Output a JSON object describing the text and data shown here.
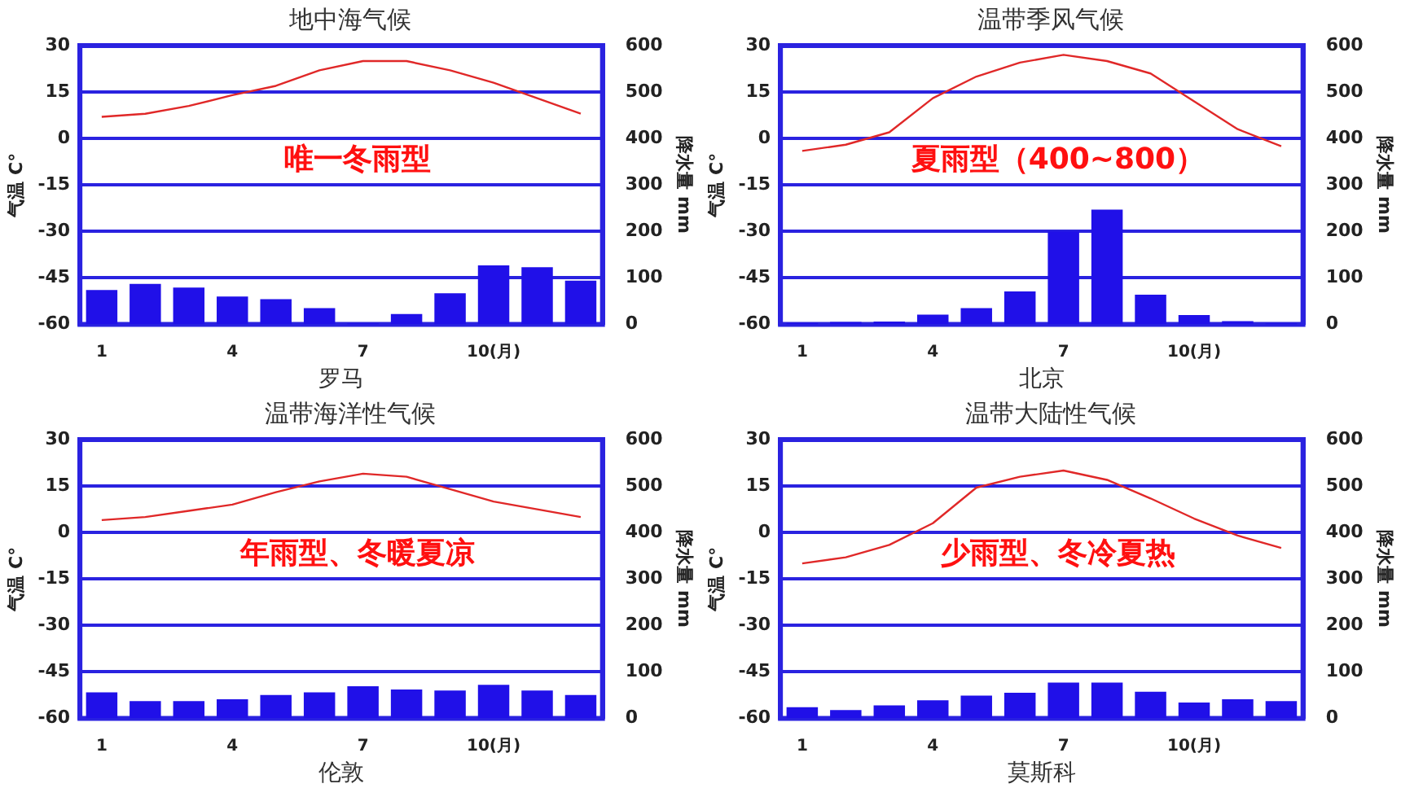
{
  "chart_data": [
    {
      "type": "bar",
      "title": "地中海气候",
      "xlabel": "罗马",
      "ylabel": "气温 C°",
      "y2label": "降水量 mm",
      "categories": [
        "1",
        null,
        null,
        "4",
        null,
        null,
        "7",
        null,
        null,
        "10(月)",
        null,
        null
      ],
      "grid": "y",
      "marker": "none",
      "annotations": [
        "唯一冬雨型"
      ],
      "series": [
        {
          "type": "line",
          "color": "#e02828",
          "values": [
            7,
            8,
            10.5,
            14,
            17,
            22,
            25,
            25,
            22,
            18,
            13,
            8
          ]
        },
        {
          "axis": "y2",
          "color": "#2010e8",
          "values": [
            74,
            87,
            79,
            60,
            54,
            35,
            2,
            22,
            67,
            127,
            123,
            94
          ]
        }
      ],
      "ylim": [
        -60,
        30
      ],
      "yticks": [
        -60,
        -45,
        -30,
        -15,
        0,
        15,
        30
      ],
      "y2lim": [
        0,
        600
      ],
      "y2ticks": [
        0,
        100,
        200,
        300,
        400,
        500,
        600
      ]
    },
    {
      "type": "bar",
      "title": "温带季风气候",
      "xlabel": "北京",
      "ylabel": "气温 C°",
      "y2label": "降水量 mm",
      "categories": [
        "1",
        null,
        null,
        "4",
        null,
        null,
        "7",
        null,
        null,
        "10(月)",
        null,
        null
      ],
      "grid": "y",
      "marker": "none",
      "annotations": [
        "夏雨型（400~800）"
      ],
      "series": [
        {
          "type": "line",
          "color": "#e02828",
          "values": [
            -4,
            -2,
            2,
            13,
            20,
            24.5,
            27,
            25,
            21,
            12,
            3,
            -2.5
          ]
        },
        {
          "axis": "y2",
          "color": "#2010e8",
          "values": [
            3,
            5,
            6,
            21,
            35,
            71,
            200,
            247,
            64,
            20,
            7,
            2
          ]
        }
      ],
      "ylim": [
        -60,
        30
      ],
      "yticks": [
        -60,
        -45,
        -30,
        -15,
        0,
        15,
        30
      ],
      "y2lim": [
        0,
        600
      ],
      "y2ticks": [
        0,
        100,
        200,
        300,
        400,
        500,
        600
      ]
    },
    {
      "type": "bar",
      "title": "温带海洋性气候",
      "xlabel": "伦敦",
      "ylabel": "气温 C°",
      "y2label": "降水量 mm",
      "categories": [
        "1",
        null,
        null,
        "4",
        null,
        null,
        "7",
        null,
        null,
        "10(月)",
        null,
        null
      ],
      "grid": "y",
      "marker": "none",
      "annotations": [
        "年雨型、冬暖夏凉"
      ],
      "series": [
        {
          "type": "line",
          "color": "#e02828",
          "values": [
            4,
            5,
            7,
            9,
            13,
            16.5,
            19,
            18,
            14,
            10,
            7.5,
            5
          ]
        },
        {
          "axis": "y2",
          "color": "#2010e8",
          "values": [
            56,
            37,
            37,
            41,
            50,
            56,
            69,
            62,
            60,
            72,
            60,
            50
          ]
        }
      ],
      "ylim": [
        -60,
        30
      ],
      "yticks": [
        -60,
        -45,
        -30,
        -15,
        0,
        15,
        30
      ],
      "y2lim": [
        0,
        600
      ],
      "y2ticks": [
        0,
        100,
        200,
        300,
        400,
        500,
        600
      ]
    },
    {
      "type": "bar",
      "title": "温带大陆性气候",
      "xlabel": "莫斯科",
      "ylabel": "气温 C°",
      "y2label": "降水量 mm",
      "categories": [
        "1",
        null,
        null,
        "4",
        null,
        null,
        "7",
        null,
        null,
        "10(月)",
        null,
        null
      ],
      "grid": "y",
      "marker": "none",
      "annotations": [
        "少雨型、冬冷夏热"
      ],
      "series": [
        {
          "type": "line",
          "color": "#e02828",
          "values": [
            -10,
            -8,
            -4,
            3,
            14.5,
            18,
            20,
            17,
            11,
            4.5,
            -1,
            -5
          ]
        },
        {
          "axis": "y2",
          "color": "#2010e8",
          "values": [
            24,
            18,
            28,
            39,
            49,
            55,
            77,
            77,
            57,
            34,
            41,
            37
          ]
        }
      ],
      "ylim": [
        -60,
        30
      ],
      "yticks": [
        -60,
        -45,
        -30,
        -15,
        0,
        15,
        30
      ],
      "y2lim": [
        0,
        600
      ],
      "y2ticks": [
        0,
        100,
        200,
        300,
        400,
        500,
        600
      ]
    }
  ]
}
